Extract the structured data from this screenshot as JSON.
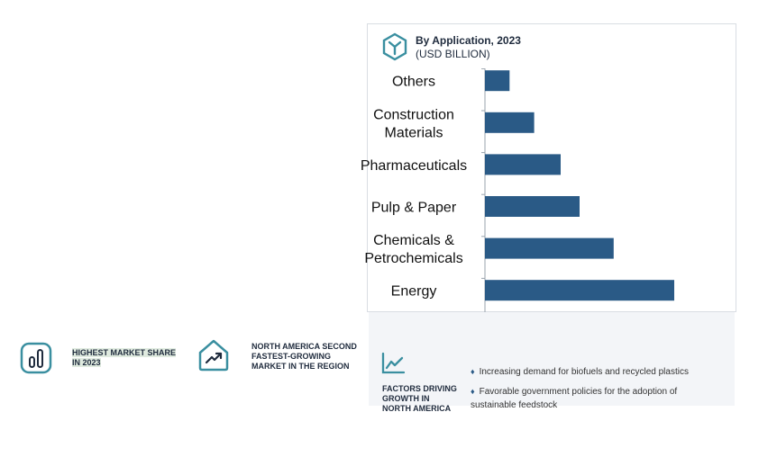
{
  "header": {
    "title": "By Application, 2023",
    "subtitle": "(USD BILLION)",
    "icon": "hexagon-y-icon"
  },
  "chart_data": {
    "type": "bar",
    "orientation": "horizontal",
    "title": "By Application, 2023",
    "subtitle": "(USD BILLION)",
    "categories": [
      "Energy",
      "Chemicals & Petrochemicals",
      "Pulp & Paper",
      "Pharmaceuticals",
      "Construction Materials",
      "Others"
    ],
    "category_lines": [
      [
        "Energy"
      ],
      [
        "Chemicals &",
        "Petrochemicals"
      ],
      [
        "Pulp & Paper"
      ],
      [
        "Pharmaceuticals"
      ],
      [
        "Construction",
        "Materials"
      ],
      [
        "Others"
      ]
    ],
    "values": [
      10,
      6.8,
      5.0,
      4.0,
      2.6,
      1.3
    ],
    "value_axis": {
      "min": 0,
      "max": 12,
      "shown": false
    },
    "bar_color": "#2a5a86",
    "grid": false,
    "legend": "none"
  },
  "kpis": [
    {
      "icon": "bar-chart-icon",
      "text_lines": [
        "HIGHEST MARKET SHARE",
        "IN 2023"
      ]
    },
    {
      "icon": "trend-up-house-icon",
      "text_lines": [
        "NORTH AMERICA SECOND",
        "FASTEST-GROWING",
        "MARKET IN THE REGION"
      ]
    }
  ],
  "factors": {
    "icon": "line-chart-icon",
    "label_lines": [
      "FACTORS DRIVING",
      "GROWTH IN",
      "NORTH AMERICA"
    ],
    "items": [
      "Increasing demand for biofuels and recycled plastics",
      "Favorable government policies for the adoption of sustainable feedstock"
    ]
  },
  "colors": {
    "accent": "#2a5a86",
    "icon_teal": "#3a8fa0",
    "band": "#f3f5f8"
  }
}
